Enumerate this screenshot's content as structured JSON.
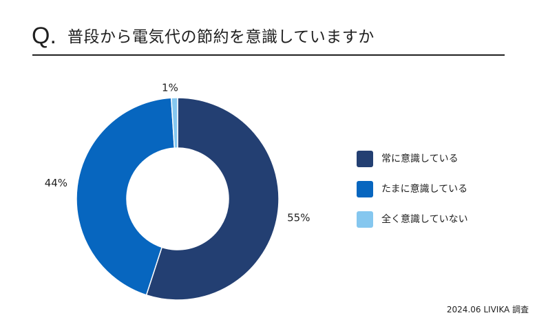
{
  "header": {
    "q_mark": "Q.",
    "question": "普段から電気代の節約を意識していますか"
  },
  "chart_data": {
    "type": "pie",
    "title": "",
    "donut": true,
    "start_angle_deg": 0,
    "legend_position": "right",
    "series": [
      {
        "name": "常に意識している",
        "value": 55,
        "label": "55%",
        "color": "#233f72"
      },
      {
        "name": "たまに意識している",
        "value": 44,
        "label": "44%",
        "color": "#0766bf"
      },
      {
        "name": "全く意識していない",
        "value": 1,
        "label": "1%",
        "color": "#85c7ef"
      }
    ]
  },
  "footer": {
    "source": "2024.06 LIVIKA 調査"
  }
}
